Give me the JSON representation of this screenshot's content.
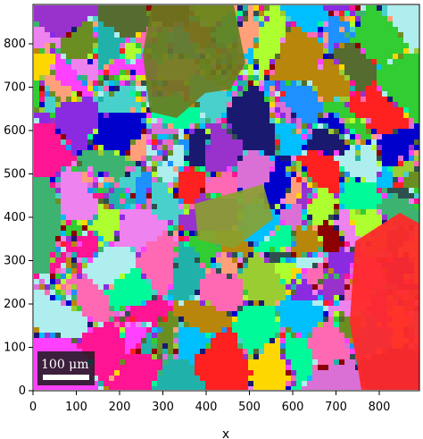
{
  "figure": {
    "x_axis_label": "x",
    "x_ticks": [
      "0",
      "100",
      "200",
      "300",
      "400",
      "500",
      "600",
      "700",
      "800"
    ],
    "y_ticks": [
      "0",
      "100",
      "200",
      "300",
      "400",
      "500",
      "600",
      "700",
      "800"
    ],
    "scale_bar_label": "100 μm",
    "colors": {
      "background_bg": "#ffffff",
      "axis": "#000000",
      "scale_bar_box": "#1a1a1a",
      "scale_bar_fill": "#ffffff"
    }
  },
  "map": {
    "grains": [
      {
        "color": "#9acd32"
      },
      {
        "color": "#ff2020"
      },
      {
        "color": "#ff40ff"
      },
      {
        "color": "#1e90ff"
      },
      {
        "color": "#556b2f"
      },
      {
        "color": "#ffd700"
      },
      {
        "color": "#20b2aa"
      },
      {
        "color": "#8a2be2"
      },
      {
        "color": "#00fa9a"
      },
      {
        "color": "#ff69b4"
      },
      {
        "color": "#2f4f4f"
      },
      {
        "color": "#afeeee"
      },
      {
        "color": "#0000cd"
      },
      {
        "color": "#da70d6"
      },
      {
        "color": "#32cd32"
      },
      {
        "color": "#b8860b"
      },
      {
        "color": "#8b0000"
      },
      {
        "color": "#00bfff"
      },
      {
        "color": "#adff2f"
      },
      {
        "color": "#ff1493"
      },
      {
        "color": "#6b8e23"
      },
      {
        "color": "#48d1cc"
      },
      {
        "color": "#9932cc"
      },
      {
        "color": "#3cb371"
      },
      {
        "color": "#ffa07a"
      },
      {
        "color": "#191970"
      },
      {
        "color": "#ee82ee"
      }
    ]
  }
}
